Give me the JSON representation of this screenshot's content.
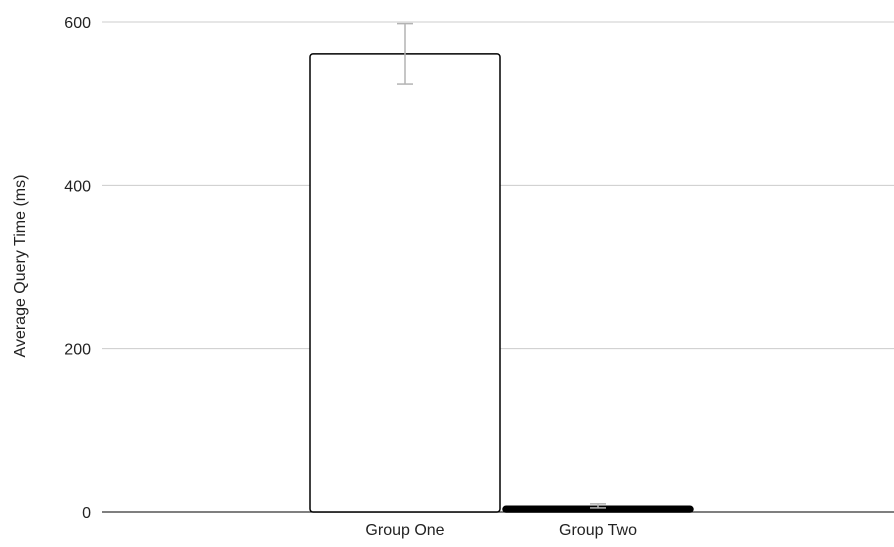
{
  "chart_data": {
    "type": "bar",
    "title": "",
    "xlabel": "",
    "ylabel": "Average Query Time (ms)",
    "categories": [
      "Group One",
      "Group Two"
    ],
    "values": [
      561,
      7
    ],
    "error": [
      {
        "low": 524,
        "high": 598
      },
      {
        "low": 5,
        "high": 10
      }
    ],
    "ylim": [
      0,
      600
    ],
    "yticks": [
      0,
      200,
      400,
      600
    ],
    "ytick_labels": [
      "0",
      "200",
      "400",
      "600"
    ],
    "grid": true,
    "legend": "none",
    "colors": {
      "bars": [
        "#ffffff",
        "#000000"
      ],
      "bar_stroke": "#000000",
      "gridline": "#cccccc",
      "error_bar": "#b3b3b3",
      "text": "#222222"
    }
  }
}
